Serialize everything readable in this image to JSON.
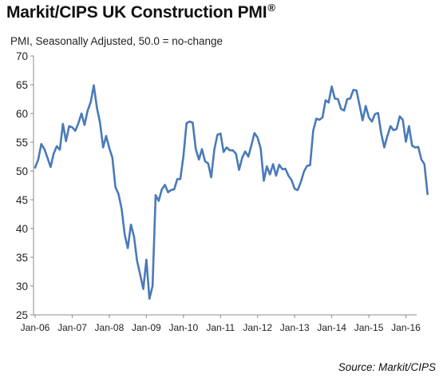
{
  "chart_data": {
    "type": "line",
    "title": "Markit/CIPS UK Construction PMI",
    "title_mark": "®",
    "subtitle": "PMI, Seasonally Adjusted, 50.0 = no-change",
    "source": "Source: Markit/CIPS",
    "ylim": [
      25,
      70
    ],
    "yticks": [
      "25",
      "30",
      "35",
      "40",
      "45",
      "50",
      "55",
      "60",
      "65",
      "70"
    ],
    "xticks": [
      "Jan-06",
      "Jan-07",
      "Jan-08",
      "Jan-09",
      "Jan-10",
      "Jan-11",
      "Jan-12",
      "Jan-13",
      "Jan-14",
      "Jan-15",
      "Jan-16"
    ],
    "grid": false,
    "line_color": "#4a7ab8",
    "series": [
      {
        "start": "2006-01",
        "frequency": "monthly",
        "values": [
          50.6,
          52.0,
          54.7,
          53.8,
          52.3,
          50.7,
          53.0,
          54.3,
          53.7,
          58.2,
          55.2,
          57.8,
          57.6,
          57.0,
          58.3,
          60.0,
          58.0,
          60.5,
          62.0,
          64.9,
          61.0,
          58.4,
          54.1,
          56.1,
          54.0,
          52.3,
          47.2,
          46.0,
          43.4,
          38.9,
          36.6,
          40.7,
          38.6,
          34.4,
          32.0,
          29.5,
          34.6,
          27.8,
          30.0,
          45.8,
          44.8,
          46.8,
          47.6,
          46.3,
          46.7,
          46.8,
          48.6,
          48.6,
          52.6,
          58.3,
          58.6,
          58.4,
          53.8,
          52.0,
          53.8,
          51.7,
          51.3,
          48.9,
          53.7,
          56.3,
          56.5,
          53.3,
          54.1,
          53.6,
          53.6,
          53.0,
          50.2,
          52.3,
          53.4,
          52.5,
          54.5,
          56.6,
          55.8,
          53.9,
          48.3,
          50.8,
          49.4,
          51.2,
          49.2,
          51.1,
          50.3,
          50.4,
          49.2,
          48.4,
          46.9,
          46.7,
          48.1,
          49.9,
          50.9,
          51.0,
          57.0,
          59.1,
          58.9,
          59.3,
          62.3,
          61.9,
          64.7,
          62.6,
          62.5,
          60.8,
          60.5,
          62.5,
          62.6,
          64.1,
          64.0,
          61.4,
          58.8,
          61.3,
          59.3,
          58.6,
          59.9,
          60.1,
          56.6,
          54.1,
          56.1,
          57.8,
          57.1,
          57.3,
          59.5,
          58.9,
          55.1,
          57.8,
          54.4,
          54.1,
          54.2,
          52.0,
          51.2,
          46.0
        ]
      }
    ]
  }
}
